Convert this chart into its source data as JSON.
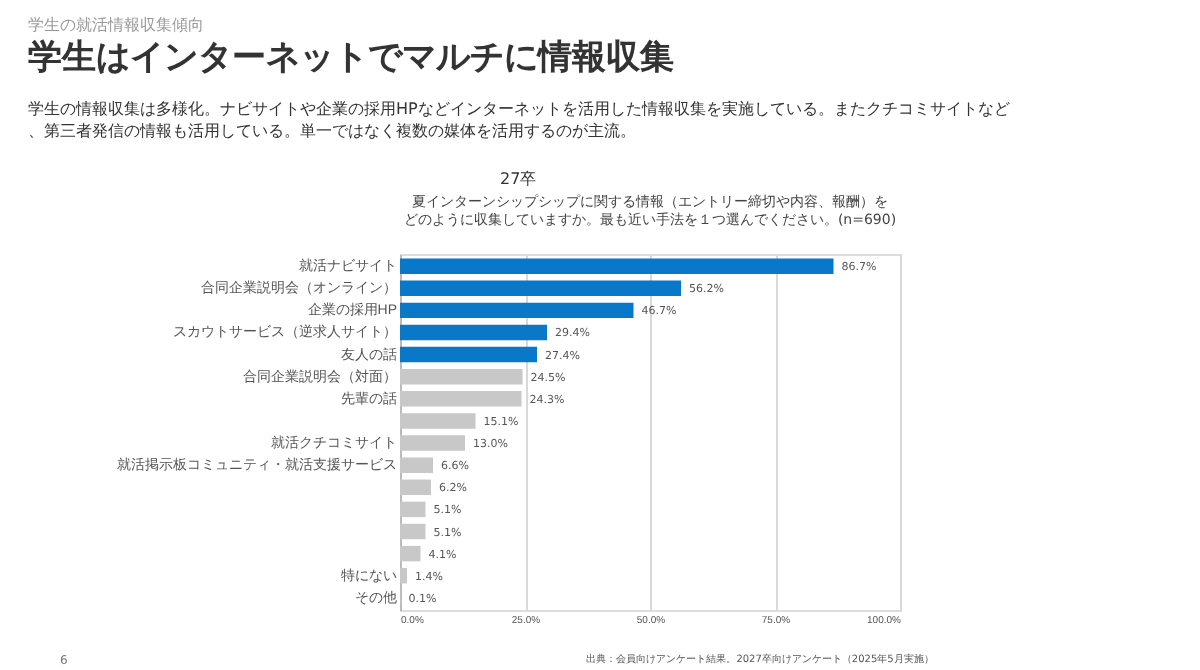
{
  "chart_data": {
    "type": "bar",
    "orientation": "horizontal",
    "title": "学生はインターネットでマルチに情報収集",
    "subtitle": "学生の情報収集は多様化。ナビサイトや企業の採用HPなどインターネットを活用した情報収集を実施している。またクチコミサイトなど、第三者発信の情報も活用している。単一ではなく複数の媒体を活用するのが主流。",
    "annotations": [
      "学生の就活情報収集傾向",
      "27卒",
      "夏インターンシップシップに関する情報（エントリー締切や内容、報酬）を",
      "どのように収集していますか。最も近い手法を１つ選んでください。(n=690)",
      "出典：会員向けアンケート結果。2027卒向けアンケート（2025年5月実施）",
      "6"
    ],
    "categories": [
      "就活ナビサイト",
      "合同企業説明会（オンライン）",
      "企業の採用HP",
      "スカウトサービス（逆求人サイト）",
      "友人の話",
      "合同企業説明会（対面）",
      "先輩の話",
      null,
      "就活クチコミサイト",
      "就活掲示板コミュニティ・就活支援サービス",
      null,
      null,
      null,
      null,
      "特にない",
      "その他"
    ],
    "values": [
      86.7,
      56.2,
      46.7,
      29.4,
      27.4,
      24.5,
      24.3,
      15.1,
      13.0,
      6.6,
      6.2,
      5.1,
      5.1,
      4.1,
      1.4,
      0.1
    ],
    "value_labels": [
      "86.7%",
      "56.2%",
      "46.7%",
      "29.4%",
      "27.4%",
      "24.5%",
      "24.3%",
      "15.1%",
      "13.0%",
      "6.6%",
      "6.2%",
      "5.1%",
      "5.1%",
      "4.1%",
      "1.4%",
      "0.1%"
    ],
    "colors": [
      "#0a78c8",
      "#0a78c8",
      "#0a78c8",
      "#0a78c8",
      "#0a78c8",
      "#c8c8c8",
      "#c8c8c8",
      "#c8c8c8",
      "#c8c8c8",
      "#c8c8c8",
      "#c8c8c8",
      "#c8c8c8",
      "#c8c8c8",
      "#c8c8c8",
      "#c8c8c8",
      "#c8c8c8"
    ],
    "xlim": [
      0,
      100
    ],
    "xticks": [
      {
        "value": 0,
        "label": "0.0%"
      },
      {
        "value": 25,
        "label": "25.0%"
      },
      {
        "value": 50,
        "label": "50.0%"
      },
      {
        "value": 75,
        "label": "75.0%"
      },
      {
        "value": 100,
        "label": "100.0%"
      }
    ],
    "grid": "x"
  }
}
